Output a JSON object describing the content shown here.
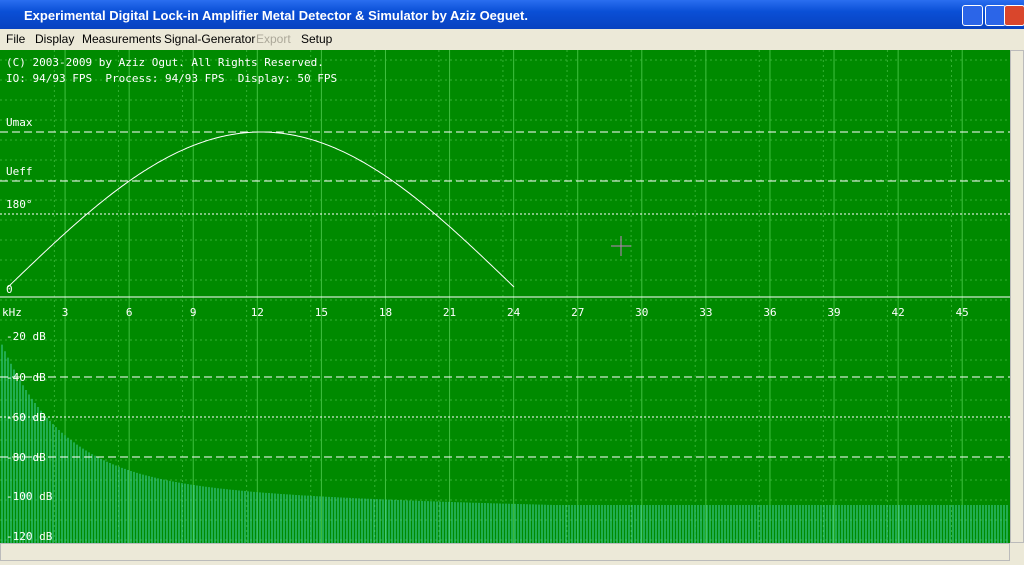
{
  "window": {
    "title": "Experimental Digital Lock-in Amplifier Metal Detector & Simulator by Aziz Oeguet."
  },
  "menu": {
    "items": [
      "File",
      "Display",
      "Measurements",
      "Signal-Generator",
      "Export",
      "Setup"
    ],
    "disabled": [
      "Export"
    ]
  },
  "scope": {
    "header": [
      "(C) 2003-2009 by Aziz Ogut. All Rights Reserved.",
      "IO: 94/93 FPS  Process: 94/93 FPS  Display: 50 FPS"
    ],
    "levels": [
      "Umax",
      "Ueff",
      "180°",
      "0"
    ],
    "freq_unit": "kHz",
    "freq_ticks": [
      3,
      6,
      9,
      12,
      15,
      18,
      21,
      24,
      27,
      30,
      33,
      36,
      39,
      42,
      45
    ],
    "db_labels": [
      "-20 dB",
      "-40 dB",
      "-60 dB",
      "-80 dB",
      "-100 dB",
      "-120 dB"
    ]
  }
}
